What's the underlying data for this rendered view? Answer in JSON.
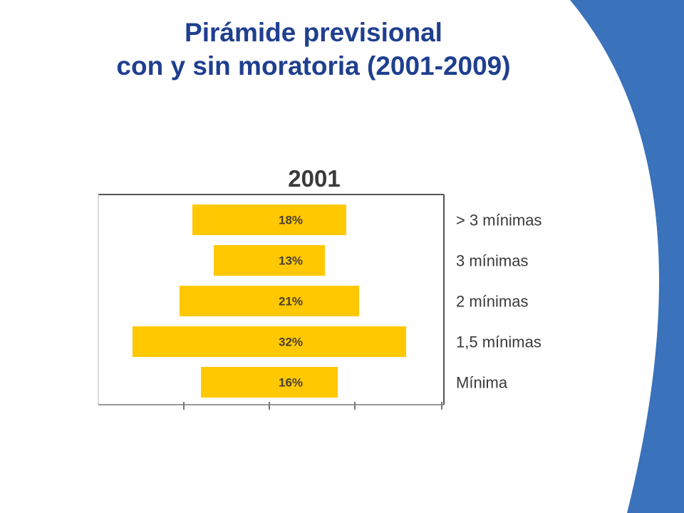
{
  "slide": {
    "title_line1": "Pirámide previsional",
    "title_line2": "con y sin moratoria (2001-2009)",
    "accent_color": "#3a72bb",
    "title_color": "#1f3f8f"
  },
  "chart_data": {
    "type": "bar",
    "orientation": "horizontal-centered",
    "title": "2001",
    "categories": [
      "> 3 mínimas",
      "3 mínimas",
      "2 mínimas",
      "1,5 mínimas",
      "Mínima"
    ],
    "values": [
      18,
      13,
      21,
      32,
      16
    ],
    "data_labels": [
      "18%",
      "13%",
      "21%",
      "32%",
      "16%"
    ],
    "unit": "%",
    "bar_color": "#ffc800",
    "legend": "none",
    "grid": false
  }
}
